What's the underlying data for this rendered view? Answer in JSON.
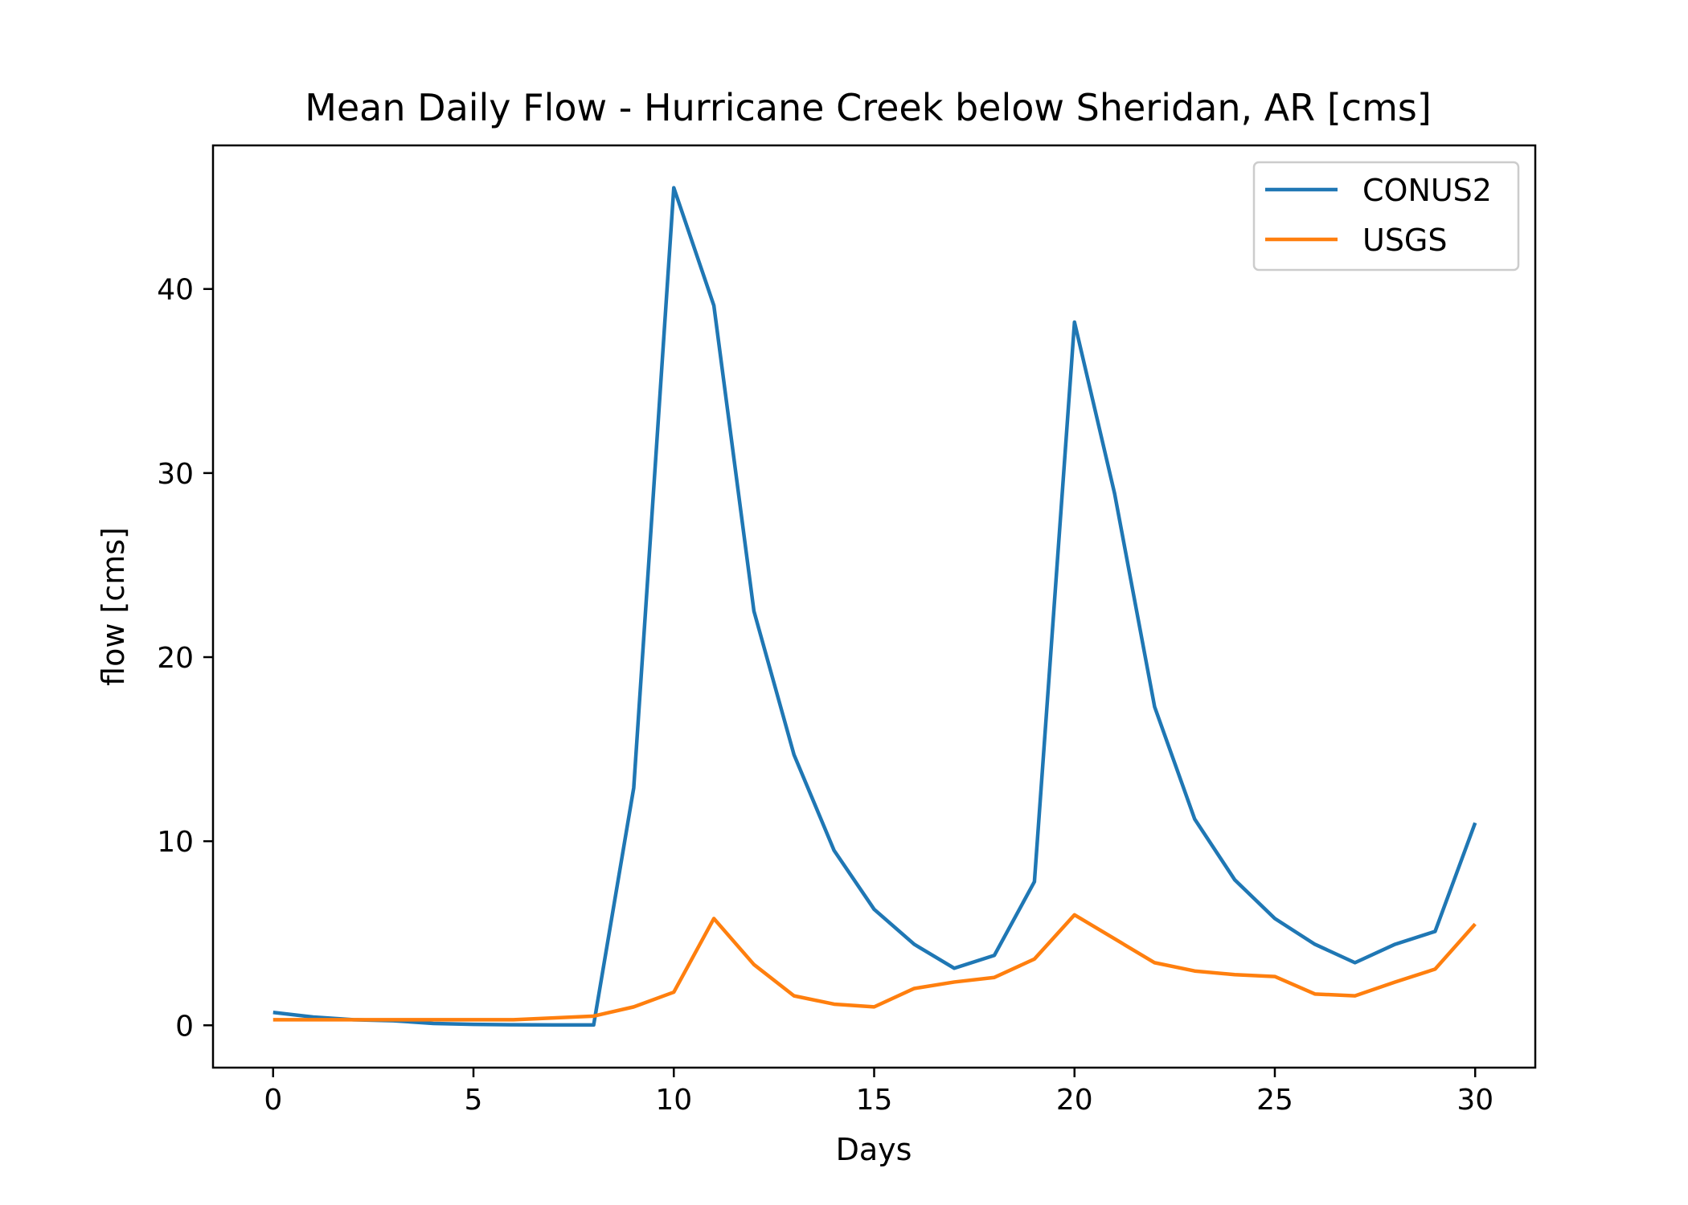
{
  "chart_data": {
    "type": "line",
    "title": "Mean Daily Flow - Hurricane Creek below Sheridan, AR [cms]",
    "xlabel": "Days",
    "ylabel": "flow [cms]",
    "xlim": [
      -1.5,
      31.5
    ],
    "ylim": [
      -2.3,
      47.8
    ],
    "xticks": [
      0,
      5,
      10,
      15,
      20,
      25,
      30
    ],
    "yticks": [
      0,
      10,
      20,
      30,
      40
    ],
    "grid": false,
    "legend_position": "top-right",
    "x": [
      0,
      1,
      2,
      3,
      4,
      5,
      6,
      7,
      8,
      9,
      10,
      11,
      12,
      13,
      14,
      15,
      16,
      17,
      18,
      19,
      20,
      21,
      22,
      23,
      24,
      25,
      26,
      27,
      28,
      29,
      30
    ],
    "series": [
      {
        "name": "CONUS2",
        "color": "#1f77b4",
        "values": [
          0.7,
          0.45,
          0.3,
          0.25,
          0.1,
          0.05,
          0.03,
          0.02,
          0.02,
          12.9,
          45.5,
          39.1,
          22.5,
          14.7,
          9.5,
          6.3,
          4.4,
          3.1,
          3.8,
          7.8,
          38.2,
          28.9,
          17.3,
          11.2,
          7.9,
          5.8,
          4.4,
          3.4,
          4.4,
          5.1,
          11.0
        ]
      },
      {
        "name": "USGS",
        "color": "#ff7f0e",
        "values": [
          0.3,
          0.3,
          0.3,
          0.3,
          0.3,
          0.3,
          0.3,
          0.4,
          0.5,
          1.0,
          1.8,
          5.8,
          3.3,
          1.6,
          1.15,
          1.0,
          2.0,
          2.35,
          2.6,
          3.6,
          6.0,
          4.7,
          3.4,
          2.95,
          2.75,
          2.65,
          1.7,
          1.6,
          2.35,
          3.05,
          5.5
        ]
      }
    ]
  }
}
